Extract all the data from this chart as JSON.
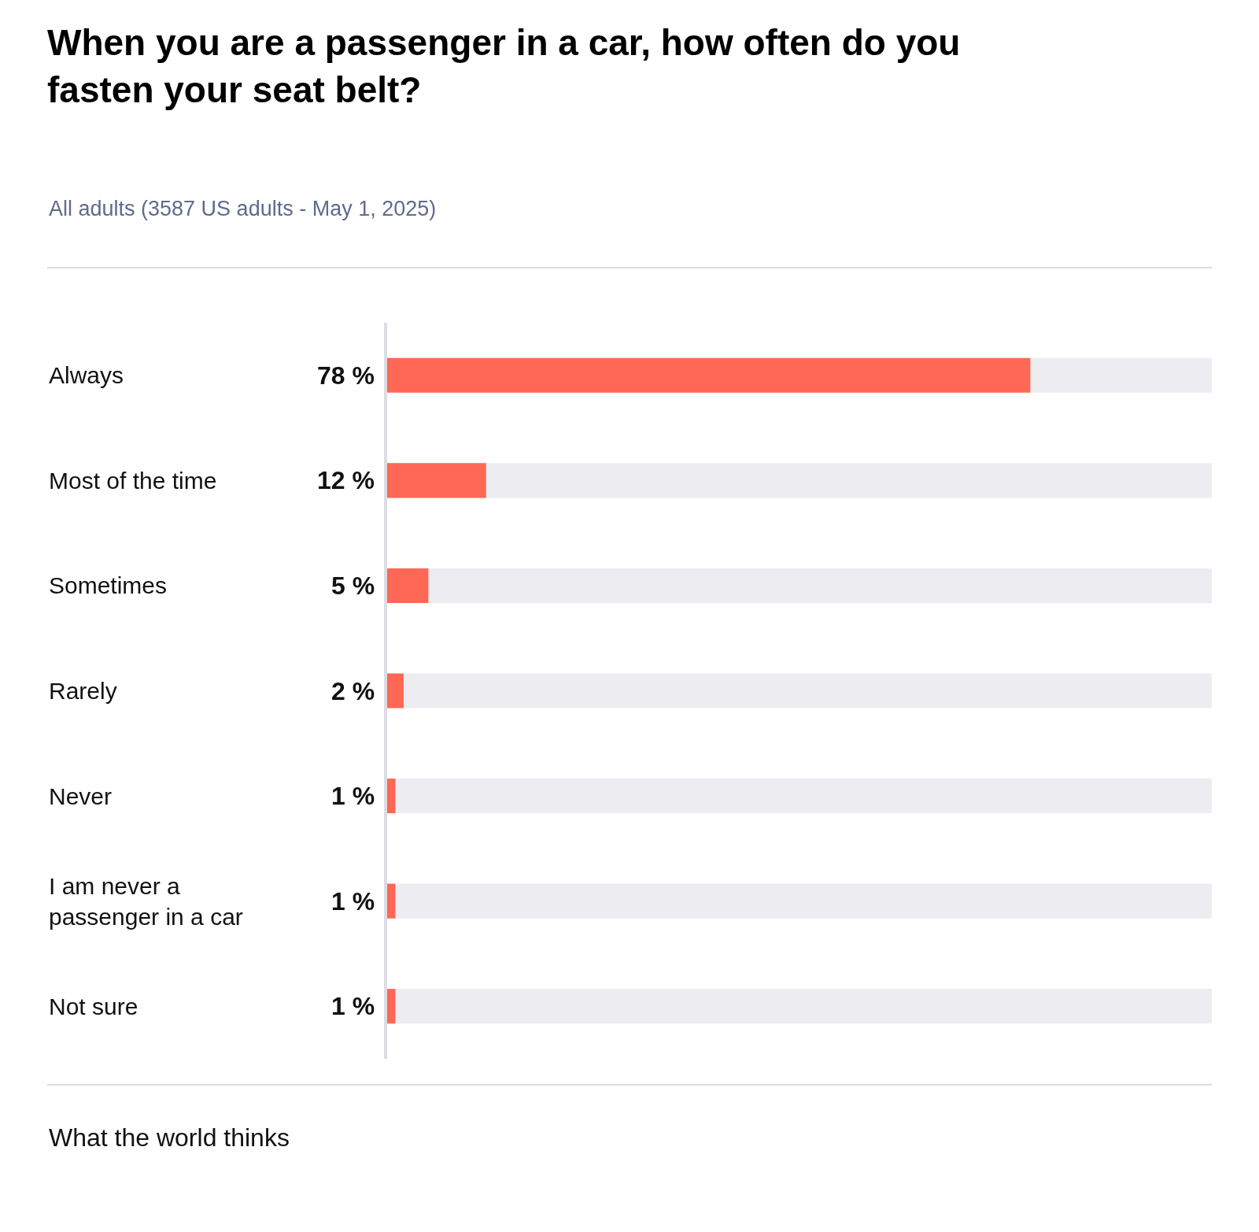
{
  "chart_data": {
    "type": "bar",
    "orientation": "horizontal",
    "title": "When you are a passenger in a car, how often do you fasten your seat belt?",
    "subtitle": "All adults (3587 US adults - May 1, 2025)",
    "categories": [
      "Always",
      "Most of the time",
      "Sometimes",
      "Rarely",
      "Never",
      "I am never a passenger in a car",
      "Not sure"
    ],
    "values": [
      78,
      12,
      5,
      2,
      1,
      1,
      1
    ],
    "value_labels": [
      "78 %",
      "12 %",
      "5 %",
      "2 %",
      "1 %",
      "1 %",
      "1 %"
    ],
    "color": "#ff6854",
    "xlim": [
      0,
      100
    ],
    "tick_labels": "y",
    "grid": false,
    "legend": false,
    "annotations": [
      "What the world thinks"
    ]
  }
}
